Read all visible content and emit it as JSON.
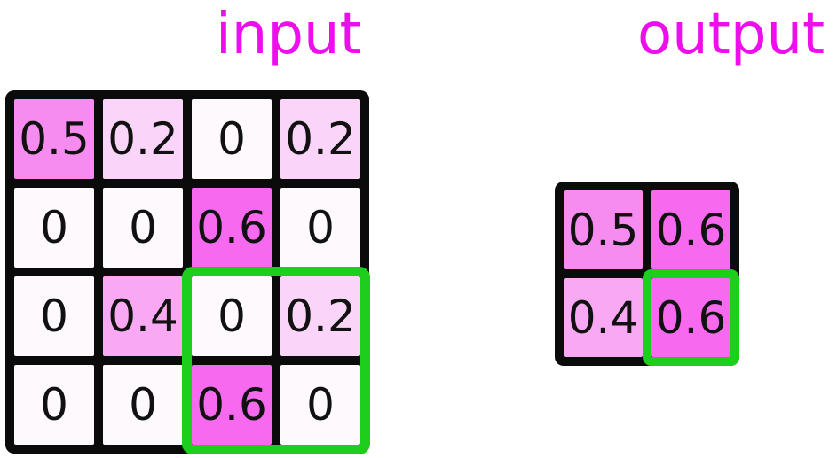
{
  "figure": {
    "kind": "max-pooling-diagram",
    "input": {
      "title": "input",
      "rows": [
        [
          "0.5",
          "0.2",
          "0",
          "0.2"
        ],
        [
          "0",
          "0",
          "0.6",
          "0"
        ],
        [
          "0",
          "0.4",
          "0",
          "0.2"
        ],
        [
          "0",
          "0",
          "0.6",
          "0"
        ]
      ]
    },
    "output": {
      "title": "output",
      "rows": [
        [
          "0.5",
          "0.6"
        ],
        [
          "0.4",
          "0.6"
        ]
      ]
    },
    "highlight": {
      "color": "#1DCE1D",
      "input_region": "rows 3-4, cols 3-4",
      "output_cell": "row 2, col 2"
    },
    "colors": {
      "title_text": "#ED0DED",
      "grid_line": "#0B0B0B",
      "cell_text": "#111111",
      "value_fill": {
        "0": "#FDF9FD",
        "0.2": "#FBD4F9",
        "0.4": "#F9A8F3",
        "0.5": "#F78CF0",
        "0.6": "#F76AEF"
      }
    }
  }
}
